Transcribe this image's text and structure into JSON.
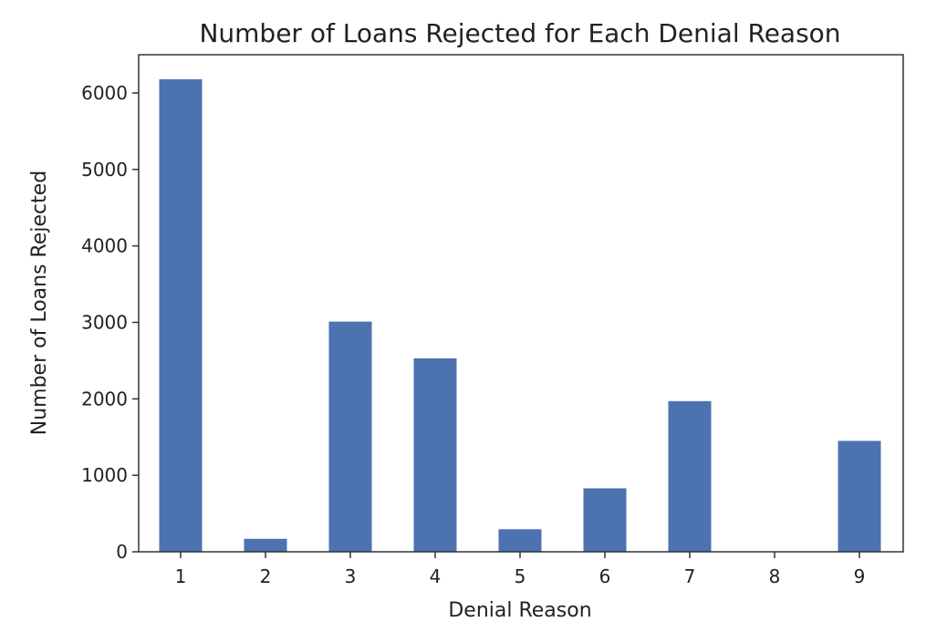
{
  "chart_data": {
    "type": "bar",
    "title": "Number of Loans Rejected for Each Denial Reason",
    "xlabel": "Denial Reason",
    "ylabel": "Number of Loans Rejected",
    "categories": [
      "1",
      "2",
      "3",
      "4",
      "5",
      "6",
      "7",
      "8",
      "9"
    ],
    "values": [
      6180,
      170,
      3010,
      2530,
      295,
      830,
      1970,
      0,
      1450
    ],
    "ylim": [
      0,
      6500
    ],
    "yticks": [
      0,
      1000,
      2000,
      3000,
      4000,
      5000,
      6000
    ],
    "grid": false,
    "legend": "none",
    "bar_color": "#4c72b0"
  }
}
